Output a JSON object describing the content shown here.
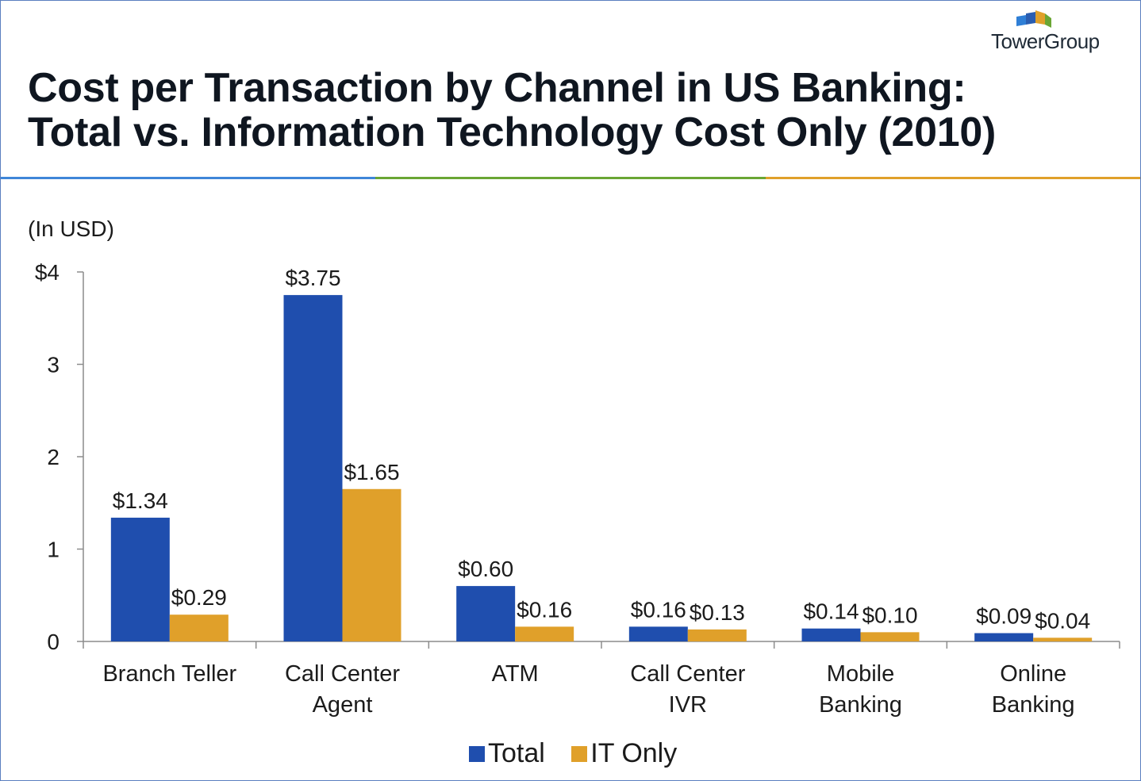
{
  "brand": {
    "name": "TowerGroup"
  },
  "header": {
    "title_line1": "Cost per Transaction by Channel in US Banking:",
    "title_line2": "Total vs. Information Technology Cost Only (2010)"
  },
  "colors": {
    "total": "#1f4eae",
    "it_only": "#e0a02a",
    "rule_blue": "#3f86d8",
    "rule_green": "#6aa634",
    "rule_orange": "#e0a02a"
  },
  "chart_data": {
    "type": "bar",
    "title": "Cost per Transaction by Channel in US Banking: Total vs. Information Technology Cost Only (2010)",
    "unit_label": "(In USD)",
    "categories": [
      [
        "Branch Teller"
      ],
      [
        "Call Center",
        "Agent"
      ],
      [
        "ATM"
      ],
      [
        "Call Center",
        "IVR"
      ],
      [
        "Mobile",
        "Banking"
      ],
      [
        "Online",
        "Banking"
      ]
    ],
    "series": [
      {
        "name": "Total",
        "values": [
          1.34,
          3.75,
          0.6,
          0.16,
          0.14,
          0.09
        ],
        "labels": [
          "$1.34",
          "$3.75",
          "$0.60",
          "$0.16",
          "$0.14",
          "$0.09"
        ]
      },
      {
        "name": "IT Only",
        "values": [
          0.29,
          1.65,
          0.16,
          0.13,
          0.1,
          0.04
        ],
        "labels": [
          "$0.29",
          "$1.65",
          "$0.16",
          "$0.13",
          "$0.10",
          "$0.04"
        ]
      }
    ],
    "ylim": [
      0,
      4
    ],
    "yticks": [
      0,
      1,
      2,
      3,
      4
    ],
    "ytick_labels": [
      "0",
      "1",
      "2",
      "3",
      "$4"
    ],
    "xlabel": "",
    "ylabel": "",
    "grid": false,
    "legend": "bottom-center"
  }
}
